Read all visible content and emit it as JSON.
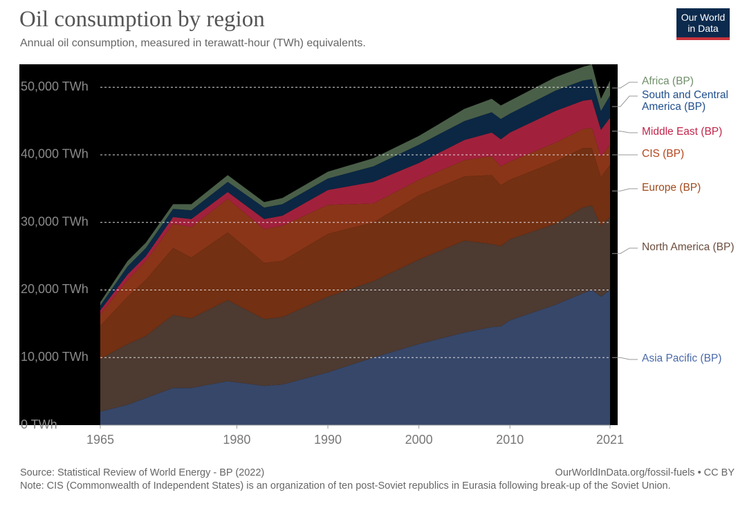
{
  "chart_data": {
    "type": "stacked-area",
    "title": "Oil consumption by region",
    "subtitle": "Annual oil consumption, measured in terawatt-hour (TWh) equivalents.",
    "logo": "Our World in Data",
    "source": "Source: Statistical Review of World Energy - BP (2022)",
    "url": "OurWorldInData.org/fossil-fuels • CC BY",
    "note": "Note: CIS (Commonwealth of Independent States) is an organization of ten post-Soviet republics in Eurasia following break-up of the Soviet Union.",
    "x": [
      1965,
      1968,
      1970,
      1973,
      1975,
      1979,
      1983,
      1985,
      1990,
      1995,
      2000,
      2005,
      2008,
      2009,
      2010,
      2015,
      2018,
      2019,
      2020,
      2021
    ],
    "series": [
      {
        "name": "Asia Pacific (BP)",
        "color": "#36476a",
        "label_color": "#4a6aa8",
        "values": [
          2000,
          3000,
          4000,
          5500,
          5500,
          6500,
          5800,
          6000,
          7800,
          10000,
          12000,
          13700,
          14500,
          14600,
          15500,
          17800,
          19500,
          20000,
          19000,
          20000
        ]
      },
      {
        "name": "North America (BP)",
        "color": "#4d3a31",
        "label_color": "#6b4d3e",
        "values": [
          7800,
          9000,
          9200,
          10800,
          10300,
          12000,
          9900,
          10000,
          11200,
          11300,
          12500,
          13600,
          12300,
          11900,
          12000,
          12000,
          12700,
          12500,
          10500,
          10800
        ]
      },
      {
        "name": "Europe (BP)",
        "color": "#733013",
        "label_color": "#a04a1d",
        "values": [
          4900,
          7000,
          8300,
          9900,
          9000,
          10000,
          8300,
          8300,
          9300,
          8700,
          9500,
          9500,
          10200,
          9000,
          8800,
          9200,
          8800,
          8500,
          7200,
          7700
        ]
      },
      {
        "name": "CIS (BP)",
        "color": "#8a3518",
        "label_color": "#b5441d",
        "values": [
          1700,
          2500,
          2800,
          3600,
          4500,
          5000,
          5000,
          5200,
          4300,
          2800,
          2300,
          2400,
          2800,
          2800,
          2700,
          2800,
          2800,
          3000,
          3000,
          3000
        ]
      },
      {
        "name": "Middle East (BP)",
        "color": "#a1213c",
        "label_color": "#c2254a",
        "values": [
          600,
          800,
          700,
          1000,
          1200,
          1000,
          1500,
          1500,
          2200,
          3200,
          2500,
          3000,
          3500,
          4000,
          4300,
          4700,
          4200,
          4200,
          4000,
          4000
        ]
      },
      {
        "name": "South and Central America (BP)",
        "color": "#0b2744",
        "label_color": "#1f4e8c",
        "values": [
          700,
          1200,
          1200,
          1200,
          1300,
          1500,
          1700,
          1700,
          1700,
          2300,
          2700,
          2800,
          3000,
          3000,
          2800,
          3000,
          3000,
          3000,
          2800,
          3300
        ]
      },
      {
        "name": "Africa (BP)",
        "color": "#4a5f48",
        "label_color": "#6f8f6a",
        "values": [
          500,
          800,
          800,
          700,
          900,
          1000,
          800,
          900,
          1000,
          1200,
          1300,
          1800,
          2000,
          2000,
          1900,
          2000,
          2000,
          2200,
          1800,
          2200
        ]
      }
    ],
    "xlim": [
      1965,
      2021
    ],
    "xticks": [
      1965,
      1980,
      1990,
      2000,
      2010,
      2021
    ],
    "ylim": [
      0,
      53400
    ],
    "yticks": [
      {
        "value": 0,
        "label": "0 TWh"
      },
      {
        "value": 10000,
        "label": "10,000 TWh"
      },
      {
        "value": 20000,
        "label": "20,000 TWh"
      },
      {
        "value": 30000,
        "label": "30,000 TWh"
      },
      {
        "value": 40000,
        "label": "40,000 TWh"
      },
      {
        "value": 50000,
        "label": "50,000 TWh"
      }
    ],
    "grid": true,
    "background": "#000000"
  }
}
